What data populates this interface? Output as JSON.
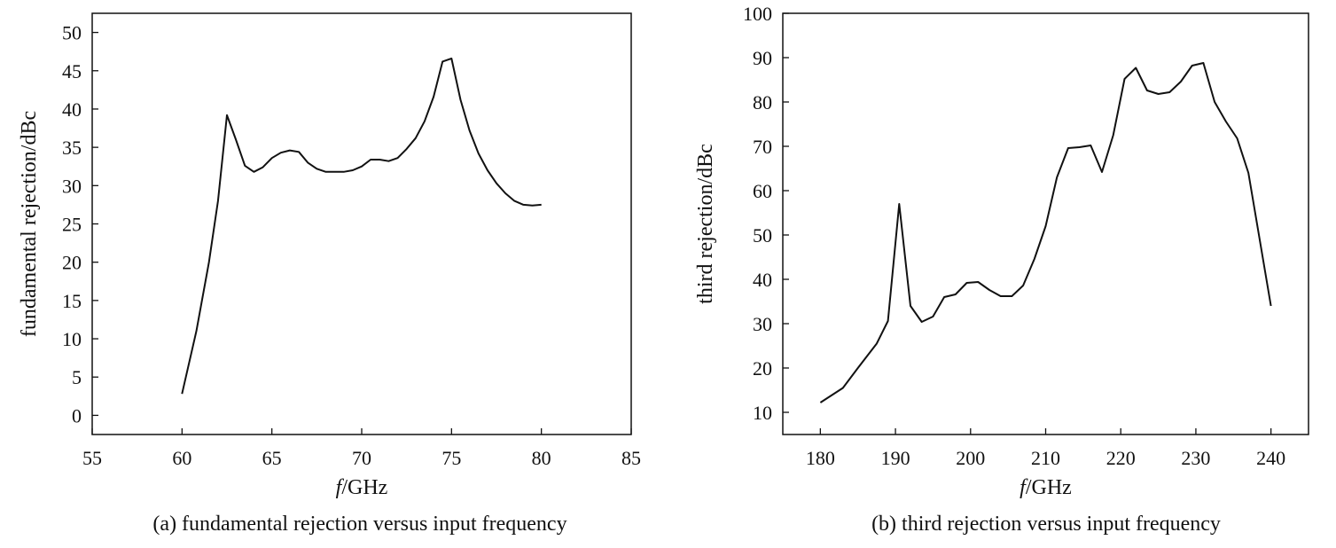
{
  "chart_data": [
    {
      "type": "line",
      "caption": "(a) fundamental rejection versus input frequency",
      "xlabel_italic": "f",
      "xlabel_rest": "/GHz",
      "ylabel": "fundamental rejection/dBc",
      "xlim": [
        55,
        85
      ],
      "ylim": [
        -2.5,
        52.5
      ],
      "xticks": [
        55,
        60,
        65,
        70,
        75,
        80,
        85
      ],
      "yticks": [
        0,
        5,
        10,
        15,
        20,
        25,
        30,
        35,
        40,
        45,
        50
      ],
      "grid": false,
      "series": [
        {
          "x": [
            60,
            60.8,
            61.5,
            62,
            62.5,
            63,
            63.5,
            64,
            64.5,
            65,
            65.5,
            66,
            66.5,
            67,
            67.5,
            68,
            68.5,
            69,
            69.5,
            70,
            70.5,
            71,
            71.5,
            72,
            72.5,
            73,
            73.5,
            74,
            74.5,
            75,
            75.5,
            76,
            76.5,
            77,
            77.5,
            78,
            78.5,
            79,
            79.5,
            80
          ],
          "y": [
            2.8,
            11,
            20,
            28,
            39.2,
            36,
            32.6,
            31.8,
            32.4,
            33.6,
            34.3,
            34.6,
            34.4,
            33,
            32.2,
            31.8,
            31.8,
            31.8,
            32,
            32.5,
            33.4,
            33.4,
            33.2,
            33.6,
            34.8,
            36.2,
            38.4,
            41.6,
            46.2,
            46.6,
            41.2,
            37.2,
            34.2,
            32,
            30.3,
            29,
            28,
            27.5,
            27.4,
            27.5
          ]
        }
      ]
    },
    {
      "type": "line",
      "caption": "(b) third rejection versus input frequency",
      "xlabel_italic": "f",
      "xlabel_rest": "/GHz",
      "ylabel": "third rejection/dBc",
      "xlim": [
        175,
        245
      ],
      "ylim": [
        5,
        100
      ],
      "xticks": [
        180,
        190,
        200,
        210,
        220,
        230,
        240
      ],
      "yticks": [
        10,
        20,
        30,
        40,
        50,
        60,
        70,
        80,
        90,
        100
      ],
      "grid": false,
      "series": [
        {
          "x": [
            180,
            183,
            185,
            187.5,
            189,
            190.5,
            192,
            193.5,
            195,
            196.5,
            198,
            199.5,
            201,
            202.5,
            204,
            205.5,
            207,
            208.5,
            210,
            211.5,
            213,
            214.5,
            216,
            217.5,
            219,
            220.5,
            222,
            223.5,
            225,
            226.5,
            228,
            229.5,
            231,
            232.5,
            234,
            235.5,
            237,
            240
          ],
          "y": [
            12.2,
            15.5,
            20,
            25.5,
            30.6,
            57,
            34,
            30.4,
            31.6,
            36,
            36.6,
            39.2,
            39.4,
            37.6,
            36.2,
            36.2,
            38.6,
            44.6,
            52,
            63,
            69.6,
            69.8,
            70.2,
            64.2,
            72.5,
            85.2,
            87.7,
            82.6,
            81.8,
            82.2,
            84.6,
            88.2,
            88.8,
            80,
            75.6,
            71.8,
            64,
            34
          ]
        }
      ]
    }
  ]
}
